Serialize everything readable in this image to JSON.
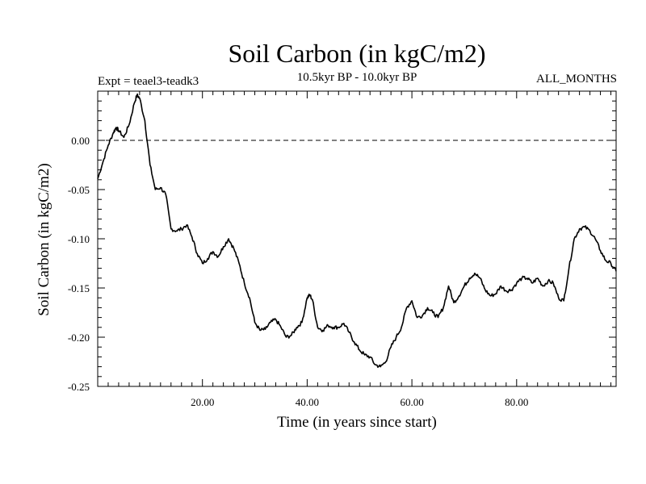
{
  "chart_data": {
    "type": "line",
    "title": "Soil Carbon (in kgC/m2)",
    "subtitle": "10.5kyr BP - 10.0kyr BP",
    "left_annotation": "Expt = teael3-teadk3",
    "right_annotation": "ALL_MONTHS",
    "xlabel": "Time (in years since start)",
    "ylabel": "Soil Carbon (in kgC/m2)",
    "xlim": [
      0,
      99
    ],
    "ylim": [
      -0.25,
      0.05
    ],
    "x_ticks": [
      {
        "value": 20,
        "label": "20.00"
      },
      {
        "value": 40,
        "label": "40.00"
      },
      {
        "value": 60,
        "label": "60.00"
      },
      {
        "value": 80,
        "label": "80.00"
      }
    ],
    "y_ticks": [
      {
        "value": 0.0,
        "label": "0.00"
      },
      {
        "value": -0.05,
        "label": "-0.05"
      },
      {
        "value": -0.1,
        "label": "-0.10"
      },
      {
        "value": -0.15,
        "label": "-0.15"
      },
      {
        "value": -0.2,
        "label": "-0.20"
      },
      {
        "value": -0.25,
        "label": "-0.25"
      }
    ],
    "reference_line": {
      "value": 0.0,
      "style": "dashed"
    },
    "series": [
      {
        "name": "Soil Carbon",
        "x": [
          0,
          1,
          2,
          3,
          3.5,
          4,
          5,
          6,
          7,
          7.5,
          8,
          9,
          10,
          11,
          12,
          13,
          14,
          15,
          16,
          17,
          18,
          19,
          20,
          21,
          22,
          23,
          24,
          25,
          26,
          27,
          28,
          29,
          30,
          31,
          32,
          33,
          34,
          35,
          36,
          37,
          38,
          39,
          40,
          40.5,
          41,
          42,
          43,
          44,
          45,
          46,
          47,
          48,
          49,
          50,
          51,
          52,
          53,
          54,
          55,
          56,
          57,
          58,
          59,
          60,
          61,
          62,
          63,
          64,
          65,
          66,
          67,
          68,
          69,
          70,
          71,
          72,
          73,
          74,
          75,
          76,
          77,
          78,
          79,
          80,
          81,
          82,
          83,
          84,
          85,
          86,
          87,
          88,
          89,
          90,
          91,
          92,
          93,
          94,
          95,
          96,
          97,
          98,
          99
        ],
        "values": [
          -0.039,
          -0.022,
          -0.005,
          0.008,
          0.013,
          0.01,
          0.003,
          0.016,
          0.038,
          0.046,
          0.043,
          0.02,
          -0.025,
          -0.05,
          -0.048,
          -0.055,
          -0.09,
          -0.092,
          -0.09,
          -0.086,
          -0.098,
          -0.115,
          -0.125,
          -0.12,
          -0.113,
          -0.118,
          -0.108,
          -0.1,
          -0.11,
          -0.125,
          -0.145,
          -0.16,
          -0.185,
          -0.193,
          -0.192,
          -0.185,
          -0.182,
          -0.19,
          -0.2,
          -0.198,
          -0.19,
          -0.185,
          -0.16,
          -0.157,
          -0.162,
          -0.19,
          -0.193,
          -0.188,
          -0.19,
          -0.19,
          -0.186,
          -0.195,
          -0.205,
          -0.213,
          -0.218,
          -0.22,
          -0.228,
          -0.23,
          -0.225,
          -0.21,
          -0.2,
          -0.19,
          -0.17,
          -0.163,
          -0.18,
          -0.178,
          -0.17,
          -0.175,
          -0.18,
          -0.17,
          -0.148,
          -0.165,
          -0.158,
          -0.148,
          -0.14,
          -0.135,
          -0.14,
          -0.152,
          -0.158,
          -0.156,
          -0.148,
          -0.153,
          -0.152,
          -0.145,
          -0.14,
          -0.14,
          -0.145,
          -0.14,
          -0.148,
          -0.143,
          -0.145,
          -0.16,
          -0.163,
          -0.13,
          -0.1,
          -0.09,
          -0.088,
          -0.092,
          -0.1,
          -0.112,
          -0.122,
          -0.125,
          -0.133
        ]
      }
    ]
  }
}
